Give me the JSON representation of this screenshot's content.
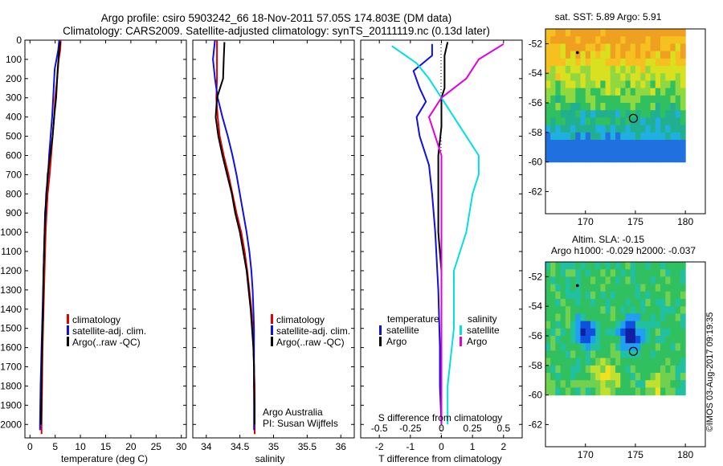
{
  "title": {
    "line1": "Argo profile: csiro 5903242_66 18-Nov-2011 57.05S 174.803E (DM data)",
    "line2": "Climatology: CARS2009. Satellite-adjusted climatology: synTS_20111119.nc (0.13d later)"
  },
  "y_ticks": [
    "0",
    "100",
    "200",
    "300",
    "400",
    "500",
    "600",
    "700",
    "800",
    "900",
    "1000",
    "1100",
    "1200",
    "1300",
    "1400",
    "1500",
    "1600",
    "1700",
    "1800",
    "1900",
    "2000"
  ],
  "colors": {
    "climatology": "#e00000",
    "satellite": "#1010e0",
    "argo": "#000000",
    "cyan": "#00e0e0",
    "magenta": "#e000e0"
  },
  "chart_data": [
    {
      "type": "line",
      "xlabel": "temperature (deg C)",
      "ylabel": "",
      "xlim": [
        -1,
        31
      ],
      "ylim": [
        2070,
        0
      ],
      "x_ticks": [
        "0",
        "5",
        "10",
        "15",
        "20",
        "25",
        "30"
      ],
      "legend": {
        "position": "lower-middle",
        "entries": [
          "climatology",
          "satellite-adj. clim.",
          "Argo(..raw -QC)"
        ]
      },
      "series": [
        {
          "name": "climatology",
          "color": "#e00000",
          "points": [
            [
              6.1,
              0
            ],
            [
              6.0,
              50
            ],
            [
              5.7,
              100
            ],
            [
              5.4,
              200
            ],
            [
              5.0,
              300
            ],
            [
              4.8,
              400
            ],
            [
              4.5,
              500
            ],
            [
              4.2,
              600
            ],
            [
              3.9,
              700
            ],
            [
              3.5,
              800
            ],
            [
              3.3,
              900
            ],
            [
              3.1,
              1000
            ],
            [
              2.9,
              1200
            ],
            [
              2.7,
              1400
            ],
            [
              2.5,
              1600
            ],
            [
              2.4,
              1800
            ],
            [
              2.3,
              2000
            ],
            [
              2.3,
              2050
            ]
          ]
        },
        {
          "name": "satellite-adj. clim.",
          "color": "#1010e0",
          "points": [
            [
              5.8,
              0
            ],
            [
              5.6,
              50
            ],
            [
              4.9,
              150
            ],
            [
              4.6,
              300
            ],
            [
              4.4,
              400
            ],
            [
              4.1,
              500
            ],
            [
              3.8,
              600
            ],
            [
              3.6,
              700
            ],
            [
              3.2,
              800
            ],
            [
              3.1,
              900
            ],
            [
              2.9,
              1000
            ],
            [
              2.7,
              1200
            ],
            [
              2.5,
              1400
            ],
            [
              2.3,
              1600
            ],
            [
              2.1,
              1800
            ],
            [
              2.0,
              2000
            ],
            [
              2.0,
              2030
            ]
          ]
        },
        {
          "name": "Argo(..raw -QC)",
          "color": "#000000",
          "points": [
            [
              6.0,
              10
            ],
            [
              5.8,
              50
            ],
            [
              5.5,
              150
            ],
            [
              5.2,
              300
            ],
            [
              4.8,
              400
            ],
            [
              4.5,
              500
            ],
            [
              4.0,
              600
            ],
            [
              3.5,
              700
            ],
            [
              3.3,
              800
            ],
            [
              3.0,
              900
            ],
            [
              2.9,
              1000
            ],
            [
              2.7,
              1200
            ],
            [
              2.6,
              1400
            ],
            [
              2.4,
              1600
            ],
            [
              2.3,
              1800
            ],
            [
              2.2,
              2000
            ]
          ]
        }
      ]
    },
    {
      "type": "line",
      "xlabel": "salinity",
      "xlim": [
        33.8,
        36.2
      ],
      "ylim": [
        2070,
        0
      ],
      "x_ticks": [
        "34",
        "34.5",
        "35",
        "35.5",
        "36"
      ],
      "legend": {
        "position": "lower-middle",
        "entries": [
          "climatology",
          "satellite-adj. clim.",
          "Argo(..raw -QC)"
        ]
      },
      "annotation": {
        "line1": "Argo Australia",
        "line2": "PI: Susan Wijffels"
      },
      "series": [
        {
          "name": "climatology",
          "color": "#e00000",
          "points": [
            [
              34.16,
              0
            ],
            [
              34.16,
              200
            ],
            [
              34.15,
              300
            ],
            [
              34.17,
              400
            ],
            [
              34.2,
              500
            ],
            [
              34.26,
              600
            ],
            [
              34.33,
              700
            ],
            [
              34.39,
              800
            ],
            [
              34.45,
              900
            ],
            [
              34.52,
              1000
            ],
            [
              34.57,
              1100
            ],
            [
              34.61,
              1200
            ],
            [
              34.64,
              1300
            ],
            [
              34.67,
              1400
            ],
            [
              34.69,
              1500
            ],
            [
              34.7,
              1600
            ],
            [
              34.71,
              1700
            ],
            [
              34.72,
              1800
            ],
            [
              34.72,
              2000
            ],
            [
              34.72,
              2050
            ]
          ]
        },
        {
          "name": "satellite-adj. clim.",
          "color": "#1010e0",
          "points": [
            [
              34.13,
              0
            ],
            [
              34.1,
              100
            ],
            [
              34.13,
              200
            ],
            [
              34.17,
              300
            ],
            [
              34.24,
              400
            ],
            [
              34.32,
              500
            ],
            [
              34.39,
              600
            ],
            [
              34.45,
              700
            ],
            [
              34.5,
              800
            ],
            [
              34.55,
              900
            ],
            [
              34.6,
              1000
            ],
            [
              34.64,
              1100
            ],
            [
              34.67,
              1200
            ],
            [
              34.69,
              1300
            ],
            [
              34.7,
              1400
            ],
            [
              34.71,
              1500
            ],
            [
              34.71,
              1700
            ],
            [
              34.71,
              2000
            ],
            [
              34.71,
              2030
            ]
          ]
        },
        {
          "name": "Argo(..raw -QC)",
          "color": "#000000",
          "points": [
            [
              34.27,
              10
            ],
            [
              34.26,
              100
            ],
            [
              34.25,
              200
            ],
            [
              34.16,
              300
            ],
            [
              34.14,
              400
            ],
            [
              34.18,
              500
            ],
            [
              34.24,
              600
            ],
            [
              34.31,
              700
            ],
            [
              34.38,
              800
            ],
            [
              34.43,
              900
            ],
            [
              34.5,
              1000
            ],
            [
              34.55,
              1100
            ],
            [
              34.6,
              1200
            ],
            [
              34.63,
              1300
            ],
            [
              34.66,
              1400
            ],
            [
              34.68,
              1500
            ],
            [
              34.7,
              1600
            ],
            [
              34.71,
              1700
            ],
            [
              34.71,
              1800
            ],
            [
              34.72,
              1900
            ],
            [
              34.72,
              2000
            ]
          ]
        }
      ]
    },
    {
      "type": "line",
      "xlabel": "T difference from climatology",
      "xlabel_top": "S difference from climatology",
      "xlim": [
        -2.6,
        2.6
      ],
      "ylim": [
        2070,
        0
      ],
      "x_ticks": [
        "-2",
        "-1",
        "0",
        "1",
        "2"
      ],
      "x_ticks_s": [
        "-0.5",
        "-0.25",
        "0",
        "0.25",
        "0.5"
      ],
      "legend": {
        "position": "lower",
        "temperature_header": "temperature",
        "salinity_header": "salinity",
        "entries": [
          "satellite",
          "Argo",
          "satellite",
          "Argo"
        ]
      },
      "series": [
        {
          "name": "satellite",
          "group": "temperature",
          "color": "#1010e0",
          "points": [
            [
              -0.3,
              20
            ],
            [
              -0.3,
              80
            ],
            [
              -0.9,
              160
            ],
            [
              -0.7,
              250
            ],
            [
              -0.5,
              320
            ],
            [
              -0.8,
              400
            ],
            [
              -0.7,
              500
            ],
            [
              -0.4,
              650
            ],
            [
              -0.3,
              800
            ],
            [
              -0.2,
              1000
            ],
            [
              -0.1,
              1300
            ],
            [
              -0.05,
              1600
            ],
            [
              -0.05,
              1800
            ],
            [
              0.0,
              2000
            ]
          ]
        },
        {
          "name": "Argo",
          "group": "temperature",
          "color": "#000000",
          "points": [
            [
              0.2,
              10
            ],
            [
              0.1,
              80
            ],
            [
              0.1,
              150
            ],
            [
              0.1,
              250
            ],
            [
              0.0,
              300
            ],
            [
              0.0,
              450
            ],
            [
              -0.1,
              600
            ],
            [
              -0.1,
              800
            ],
            [
              -0.1,
              1000
            ],
            [
              0.0,
              1200
            ],
            [
              0.0,
              1400
            ],
            [
              0.0,
              1600
            ],
            [
              0.0,
              1800
            ],
            [
              0.0,
              2000
            ]
          ]
        },
        {
          "name": "satellite",
          "group": "salinity",
          "color": "#00e0e0",
          "points": [
            [
              -0.4,
              30
            ],
            [
              -0.2,
              120
            ],
            [
              -0.1,
              200
            ],
            [
              0.0,
              300
            ],
            [
              0.1,
              400
            ],
            [
              0.2,
              500
            ],
            [
              0.3,
              600
            ],
            [
              0.3,
              700
            ],
            [
              0.25,
              800
            ],
            [
              0.2,
              1000
            ],
            [
              0.1,
              1200
            ],
            [
              0.1,
              1500
            ],
            [
              0.05,
              1800
            ],
            [
              0.05,
              2000
            ]
          ]
        },
        {
          "name": "Argo",
          "group": "salinity",
          "color": "#e000e0",
          "points": [
            [
              0.5,
              20
            ],
            [
              0.3,
              100
            ],
            [
              0.2,
              200
            ],
            [
              0.0,
              300
            ],
            [
              -0.1,
              400
            ],
            [
              -0.05,
              500
            ],
            [
              0.0,
              600
            ],
            [
              0.0,
              700
            ],
            [
              0.0,
              800
            ],
            [
              0.0,
              1000
            ],
            [
              0.0,
              1200
            ],
            [
              0.0,
              1400
            ],
            [
              0.0,
              1600
            ],
            [
              0.0,
              1800
            ],
            [
              0.0,
              2000
            ]
          ]
        }
      ]
    },
    {
      "type": "heatmap",
      "title": "sat. SST: 5.89 Argo: 5.91",
      "xlim": [
        166,
        182
      ],
      "ylim": [
        -63.5,
        -51
      ],
      "x_ticks": [
        "170",
        "175",
        "180"
      ],
      "y_ticks": [
        "-52",
        "-54",
        "-56",
        "-58",
        "-60",
        "-62"
      ],
      "data_extent": {
        "lon": [
          166,
          180
        ],
        "lat": [
          -60,
          -51
        ]
      },
      "markers": {
        "float_lat": -57.05,
        "float_lon": 174.8,
        "point_lat": -52.6,
        "point_lon": 169.2
      },
      "palette": [
        "#f0a020",
        "#f5c020",
        "#d8e020",
        "#90d840",
        "#30c060",
        "#20b090",
        "#20b0e0",
        "#2070e0"
      ]
    },
    {
      "type": "heatmap",
      "title": "Altim. SLA: -0.15",
      "subtitle": "Argo h1000: -0.029 h2000: -0.037",
      "xlim": [
        166,
        182
      ],
      "ylim": [
        -63.5,
        -51
      ],
      "x_ticks": [
        "170",
        "175",
        "180"
      ],
      "y_ticks": [
        "-52",
        "-54",
        "-56",
        "-58",
        "-60",
        "-62"
      ],
      "data_extent": {
        "lon": [
          166,
          180
        ],
        "lat": [
          -60,
          -51
        ]
      },
      "markers": {
        "float_lat": -57.05,
        "float_lon": 174.8,
        "point_lat": -52.6,
        "point_lon": 169.2
      },
      "palette": [
        "#1020a0",
        "#1050e0",
        "#20a0f0",
        "#20c0a0",
        "#30c060",
        "#70d050",
        "#c0e030",
        "#f0e020"
      ]
    }
  ],
  "footer": {
    "stamp": "©IMOS 03-Aug-2017 09:19:35"
  }
}
